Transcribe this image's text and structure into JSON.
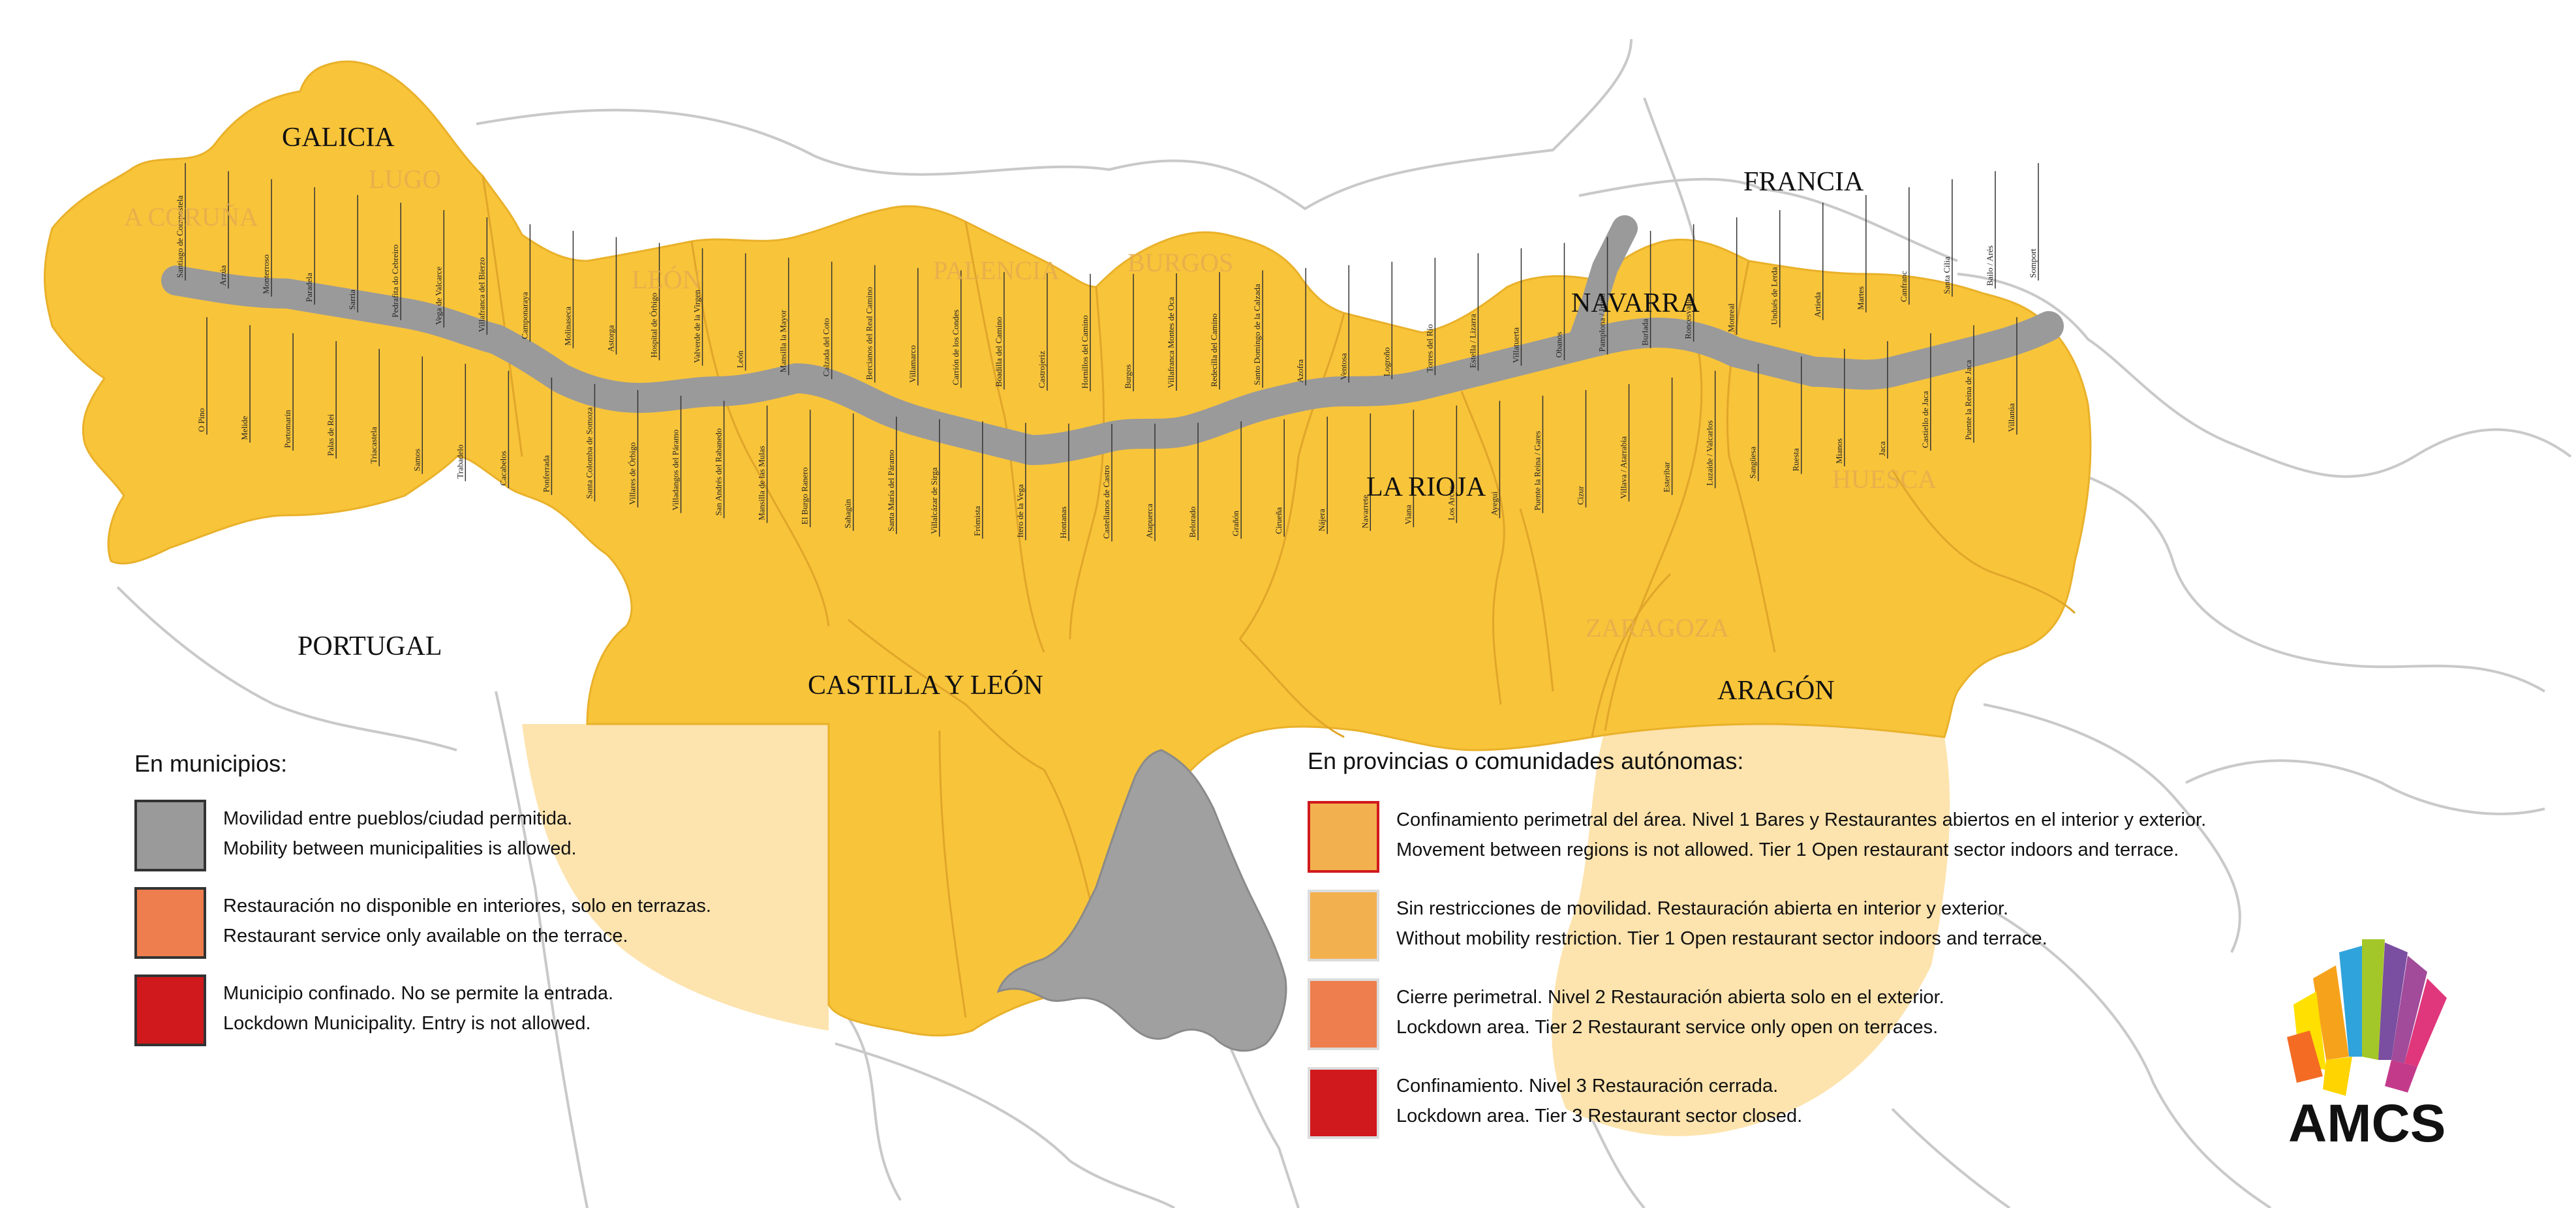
{
  "map": {
    "colors": {
      "region_fill": "#f8c43a",
      "light_region_fill": "#fde3ad",
      "municipality_route": "#9a9a9a",
      "madrid": "#a0a0a0",
      "border": "#c4c4c4"
    },
    "region_labels": [
      {
        "name": "GALICIA",
        "style": "dark"
      },
      {
        "name": "LUGO",
        "style": "faded"
      },
      {
        "name": "A CORUÑA",
        "style": "faded"
      },
      {
        "name": "LEÓN",
        "style": "faded"
      },
      {
        "name": "PALENCIA",
        "style": "faded"
      },
      {
        "name": "BURGOS",
        "style": "faded"
      },
      {
        "name": "NAVARRA",
        "style": "dark"
      },
      {
        "name": "FRANCIA",
        "style": "dark"
      },
      {
        "name": "LA RIOJA",
        "style": "dark"
      },
      {
        "name": "HUESCA",
        "style": "faded"
      },
      {
        "name": "ZARAGOZA",
        "style": "faded"
      },
      {
        "name": "ARAGÓN",
        "style": "dark"
      },
      {
        "name": "CASTILLA Y LEÓN",
        "style": "dark"
      },
      {
        "name": "PORTUGAL",
        "style": "dark"
      }
    ],
    "town_labels": [
      "Santiago de Compostela",
      "O Pino",
      "Arzúa",
      "Melide",
      "Monterroso",
      "Portomarín",
      "Paradela",
      "Palas de Rei",
      "Sarria",
      "Triacastela",
      "Pedrafita do Cebreiro",
      "Samos",
      "Vega de Valcarce",
      "Trabadelo",
      "Villafranca del Bierzo",
      "Cacabelos",
      "Camponaraya",
      "Ponferrada",
      "Molinaseca",
      "Santa Colomba de Somoza",
      "Astorga",
      "Villares de Órbigo",
      "Hospital de Órbigo",
      "Villadangos del Páramo",
      "Valverde de la Virgen",
      "San Andrés del Rabanedo",
      "León",
      "Mansilla de las Mulas",
      "Mansilla la Mayor",
      "El Burgo Ranero",
      "Calzada del Coto",
      "Sahagún",
      "Bercianos del Real Camino",
      "Santa María del Páramo",
      "Villamarco",
      "Villalcázar de Sirga",
      "Carrión de los Condes",
      "Frómista",
      "Boadilla del Camino",
      "Itero de la Vega",
      "Castrojeriz",
      "Hontanas",
      "Hornillos del Camino",
      "Castellanos de Castro",
      "Burgos",
      "Atapuerca",
      "Villafranca Montes de Oca",
      "Belorado",
      "Redecilla del Camino",
      "Grañón",
      "Santo Domingo de la Calzada",
      "Cirueña",
      "Azofra",
      "Nájera",
      "Ventosa",
      "Navarrete",
      "Logroño",
      "Viana",
      "Torres del Río",
      "Los Arcos",
      "Estella / Lizarra",
      "Ayegui",
      "Villatuerta",
      "Puente la Reina / Gares",
      "Obanos",
      "Cizur",
      "Pamplona / Iruña",
      "Villava / Atarrabia",
      "Burlada",
      "Esteribar",
      "Roncesvalles",
      "Luzaide / Valcarlos",
      "Monreal",
      "Sangüesa",
      "Undués de Lerda",
      "Ruesta",
      "Artieda",
      "Mianos",
      "Martes",
      "Jaca",
      "Canfranc",
      "Castiello de Jaca",
      "Santa Cilia",
      "Puente la Reina de Jaca",
      "Bailo / Arés",
      "Villanúa",
      "Somport"
    ]
  },
  "legend_municipalities": {
    "title": "En municipios:",
    "items": [
      {
        "color": "#9a9a9a",
        "es": "Movilidad entre pueblos/ciudad permitida.",
        "en": "Mobility between municipalities is allowed."
      },
      {
        "color": "#ee7e4d",
        "es": "Restauración no disponible en interiores, solo en terrazas.",
        "en": "Restaurant service only available on the terrace."
      },
      {
        "color": "#d0191c",
        "es": "Municipio confinado. No se permite la entrada.",
        "en": "Lockdown Municipality. Entry is not allowed."
      }
    ]
  },
  "legend_regions": {
    "title": "En provincias o comunidades autónomas:",
    "items": [
      {
        "color": "#f3b04f",
        "border": "#d0191c",
        "es": "Confinamiento perimetral del área. Nivel 1 Bares y Restaurantes abiertos en el interior y exterior.",
        "en": "Movement between regions is not allowed. Tier 1 Open restaurant sector indoors and terrace."
      },
      {
        "color": "#f3b04f",
        "border": "#d9d9d9",
        "es": "Sin restricciones de movilidad. Restauración abierta en interior y exterior.",
        "en": "Without mobility restriction. Tier 1 Open restaurant sector indoors and terrace."
      },
      {
        "color": "#ee7e4d",
        "border": "#d9d9d9",
        "es": "Cierre perimetral. Nivel 2 Restauración abierta solo en el exterior.",
        "en": "Lockdown area. Tier 2 Restaurant service only open on terraces."
      },
      {
        "color": "#d0191c",
        "border": "#d9d9d9",
        "es": "Confinamiento. Nivel 3 Restauración cerrada.",
        "en": "Lockdown area. Tier 3 Restaurant sector closed."
      }
    ]
  },
  "logo": {
    "text": "AMCS",
    "icon": "fan-logo-icon",
    "colors": [
      "#f7a21b",
      "#ffe000",
      "#a3c728",
      "#2fa3dc",
      "#7a4ea0",
      "#a14b9a",
      "#e0367b",
      "#f46b24"
    ]
  }
}
